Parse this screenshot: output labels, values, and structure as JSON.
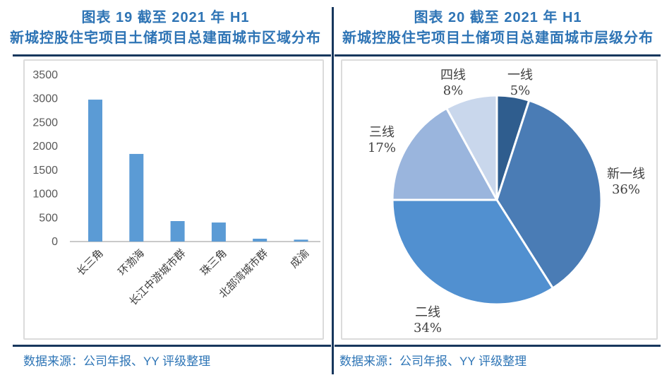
{
  "panels": {
    "left": {
      "title_line1": "图表 19 截至 2021 年 H1",
      "title_line2": "新城控股住宅项目土储项目总建面城市区域分布",
      "source": "数据来源：公司年报、YY 评级整理"
    },
    "right": {
      "title_line1": "图表 20 截至 2021 年 H1",
      "title_line2": "新城控股住宅项目土储项目总建面城市层级分布",
      "source": "数据来源：公司年报、YY 评级整理"
    }
  },
  "colors": {
    "title_blue": "#2E74B5",
    "source_blue": "#2E75B6",
    "rule_navy": "#17375D",
    "bar_blue": "#5B9BD5",
    "axis_text_gray": "#595959",
    "axis_line_gray": "#C9C9C9",
    "chart_border_gray": "#DBDBDB",
    "label_text_dark": "#404040",
    "pie_separator_white": "#FFFFFF"
  },
  "chart_data": [
    {
      "type": "bar",
      "panel": "left",
      "title": "截至 2021 年 H1 新城控股住宅项目土储项目总建面城市区域分布",
      "categories": [
        "长三角",
        "环渤海",
        "长江中游城市群",
        "珠三角",
        "北部湾城市群",
        "成渝"
      ],
      "values": [
        2980,
        1840,
        430,
        400,
        60,
        40
      ],
      "xlabel": "",
      "ylabel": "",
      "ylim": [
        0,
        3500
      ],
      "yticks": [
        0,
        500,
        1000,
        1500,
        2000,
        2500,
        3000,
        3500
      ],
      "grid": false,
      "legend": false,
      "bar_color": "#5B9BD5"
    },
    {
      "type": "pie",
      "panel": "right",
      "title": "截至 2021 年 H1 新城控股住宅项目土储项目总建面城市层级分布",
      "start_angle_deg": 0,
      "direction": "clockwise",
      "labels_outside": true,
      "slices": [
        {
          "label": "一线",
          "pct": 5,
          "color": "#2F5D8E"
        },
        {
          "label": "新一线",
          "pct": 36,
          "color": "#4A7CB5"
        },
        {
          "label": "二线",
          "pct": 34,
          "color": "#5190D0"
        },
        {
          "label": "三线",
          "pct": 17,
          "color": "#9AB5DD"
        },
        {
          "label": "四线",
          "pct": 8,
          "color": "#C9D7EC"
        }
      ]
    }
  ]
}
